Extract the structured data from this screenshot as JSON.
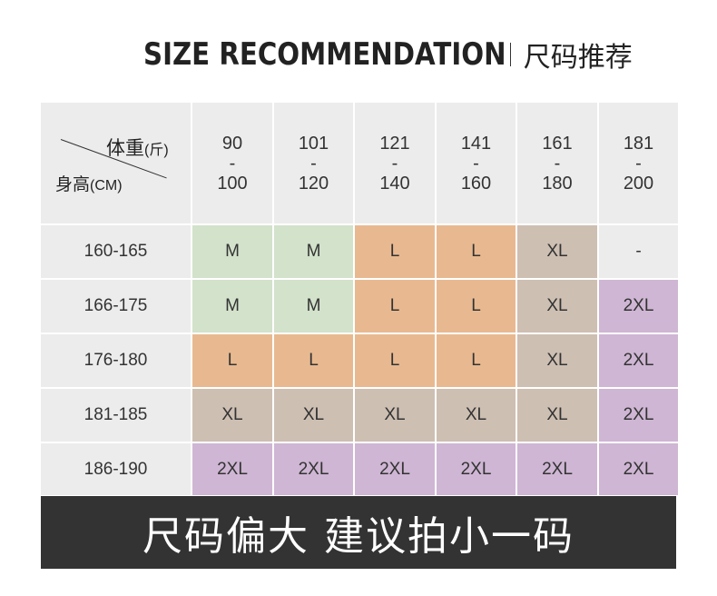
{
  "title": {
    "en": "SIZE RECOMMENDATION",
    "zh": "尺码推荐"
  },
  "corner": {
    "weight_label": "体重",
    "weight_unit": "(斤)",
    "height_label": "身高",
    "height_unit": "(CM)"
  },
  "weight_columns": [
    {
      "from": "90",
      "dash": "-",
      "to": "100"
    },
    {
      "from": "101",
      "dash": "-",
      "to": "120"
    },
    {
      "from": "121",
      "dash": "-",
      "to": "140"
    },
    {
      "from": "141",
      "dash": "-",
      "to": "160"
    },
    {
      "from": "161",
      "dash": "-",
      "to": "180"
    },
    {
      "from": "181",
      "dash": "-",
      "to": "200"
    }
  ],
  "rows": [
    {
      "height": "160-165",
      "sizes": [
        "M",
        "M",
        "L",
        "L",
        "XL",
        "-"
      ]
    },
    {
      "height": "166-175",
      "sizes": [
        "M",
        "M",
        "L",
        "L",
        "XL",
        "2XL"
      ]
    },
    {
      "height": "176-180",
      "sizes": [
        "L",
        "L",
        "L",
        "L",
        "XL",
        "2XL"
      ]
    },
    {
      "height": "181-185",
      "sizes": [
        "XL",
        "XL",
        "XL",
        "XL",
        "XL",
        "2XL"
      ]
    },
    {
      "height": "186-190",
      "sizes": [
        "2XL",
        "2XL",
        "2XL",
        "2XL",
        "2XL",
        "2XL"
      ]
    }
  ],
  "size_colors": {
    "M": "#d3e2cb",
    "L": "#e8b990",
    "XL": "#cdbfb2",
    "2XL": "#cfb6d4",
    "-": "#ececec"
  },
  "banner": {
    "text": "尺码偏大 建议拍小一码"
  }
}
